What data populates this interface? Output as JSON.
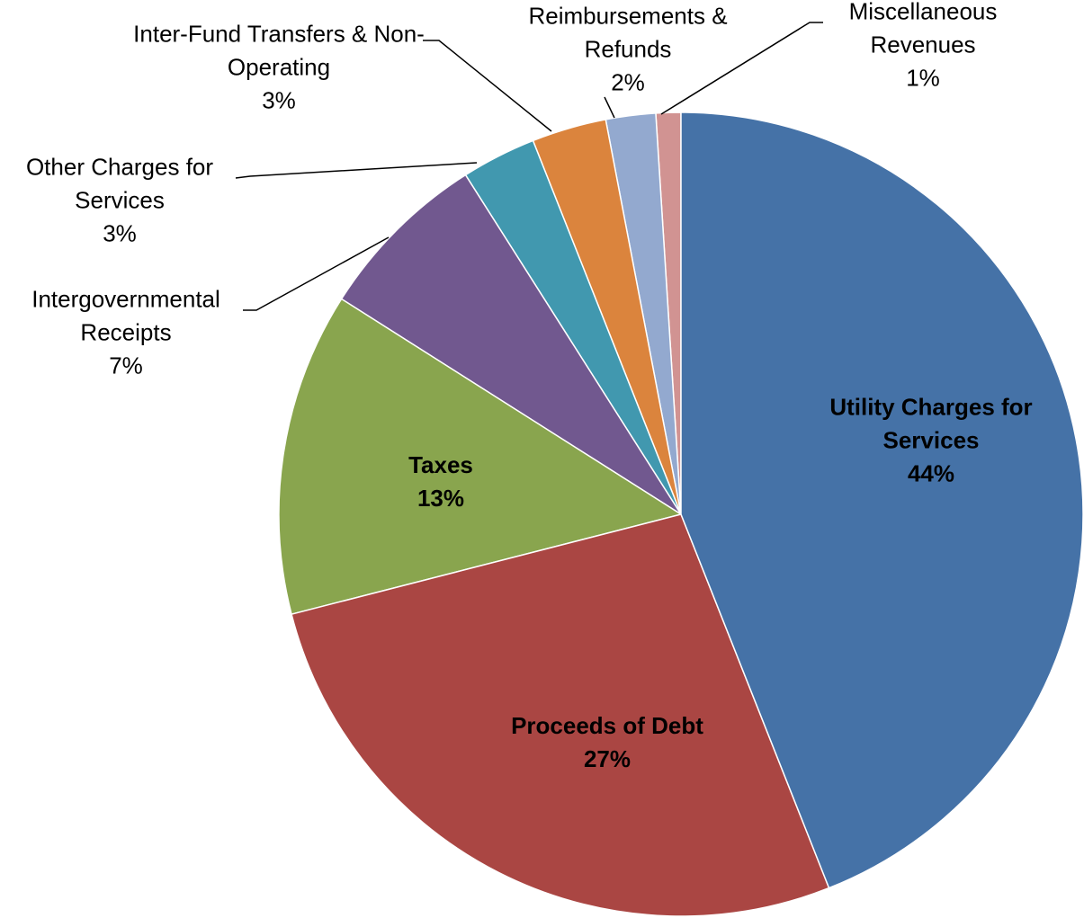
{
  "chart_data": {
    "type": "pie",
    "categories": [
      "Utility Charges for Services",
      "Proceeds of Debt",
      "Taxes",
      "Intergovernmental Receipts",
      "Other Charges for Services",
      "Inter-Fund Transfers & Non-Operating",
      "Reimbursements & Refunds",
      "Miscellaneous Revenues"
    ],
    "values": [
      44,
      27,
      13,
      7,
      3,
      3,
      2,
      1
    ],
    "value_labels": [
      "44%",
      "27%",
      "13%",
      "7%",
      "3%",
      "3%",
      "2%",
      "1%"
    ],
    "colors": [
      "#4572a7",
      "#aa4643",
      "#89a54e",
      "#71588f",
      "#4198af",
      "#db843d",
      "#93a9cf",
      "#d19392"
    ]
  }
}
